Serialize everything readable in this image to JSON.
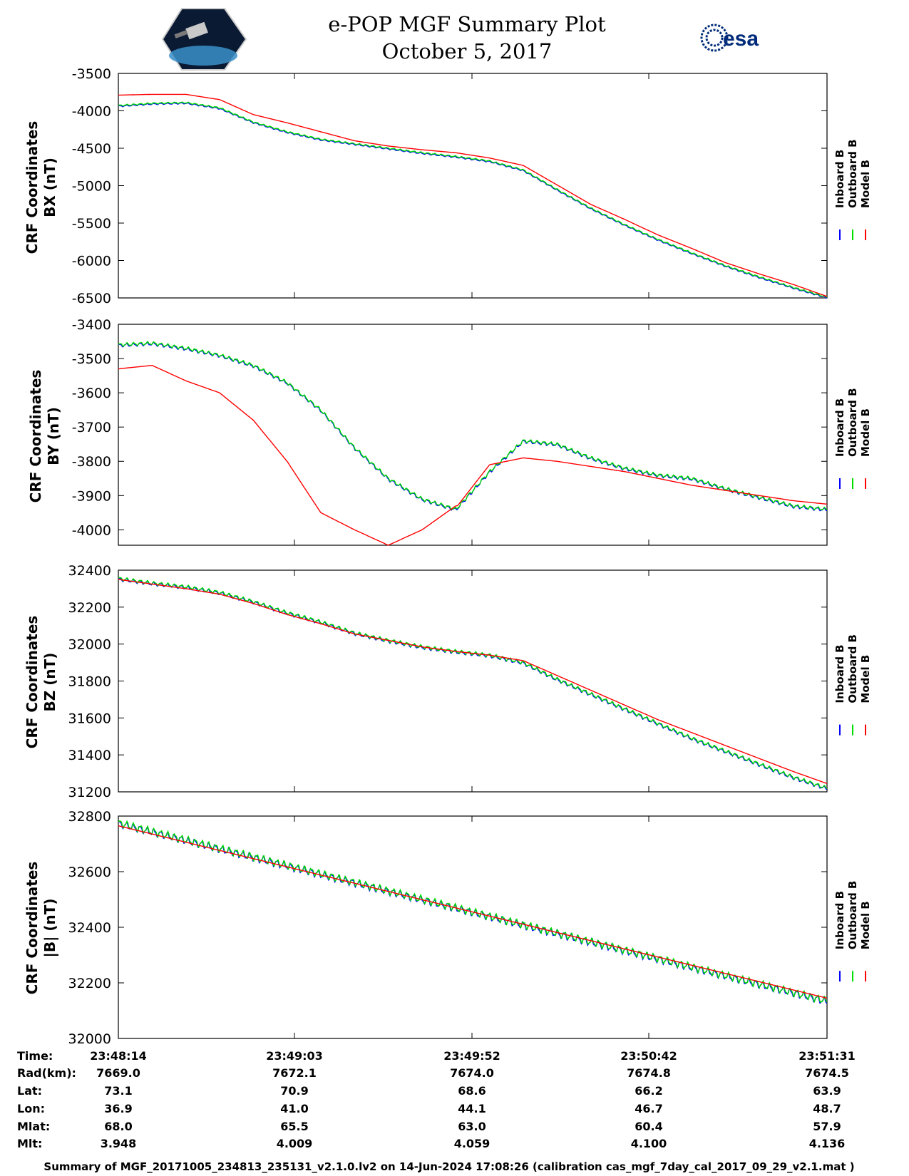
{
  "title": "e-POP MGF Summary Plot",
  "subtitle": "October 5, 2017",
  "logos": {
    "left": "cassiope-mission-patch",
    "right": "esa"
  },
  "logo_text": {
    "right": "esa"
  },
  "colors": {
    "inboard": "#0000ff",
    "outboard": "#00dd00",
    "model": "#ff0000"
  },
  "legend": [
    "Inboard B",
    "Outboard B",
    "Model B"
  ],
  "chart_data": [
    {
      "type": "line",
      "ylabel": [
        "CRF Coordinates",
        "BX (nT)"
      ],
      "ylim": [
        -6500,
        -3500
      ],
      "yticks": [
        -3500,
        -4000,
        -4500,
        -5000,
        -5500,
        -6000,
        -6500
      ],
      "x": [
        0,
        10,
        20,
        30,
        40,
        50,
        60,
        70,
        80,
        90,
        100,
        110,
        120,
        130,
        140,
        150,
        160,
        170,
        180,
        190,
        200,
        210
      ],
      "series": [
        {
          "name": "Outboard B",
          "wiggle": 8,
          "values": [
            -3930,
            -3900,
            -3890,
            -3960,
            -4150,
            -4280,
            -4380,
            -4440,
            -4500,
            -4560,
            -4610,
            -4670,
            -4790,
            -5050,
            -5300,
            -5520,
            -5720,
            -5900,
            -6070,
            -6220,
            -6360,
            -6490
          ]
        },
        {
          "name": "Model B",
          "wiggle": 0,
          "values": [
            -3790,
            -3780,
            -3780,
            -3850,
            -4050,
            -4160,
            -4280,
            -4400,
            -4470,
            -4520,
            -4560,
            -4630,
            -4730,
            -4990,
            -5250,
            -5450,
            -5660,
            -5840,
            -6030,
            -6180,
            -6320,
            -6480
          ]
        }
      ]
    },
    {
      "type": "line",
      "ylabel": [
        "CRF Coordinates",
        "BY (nT)"
      ],
      "ylim": [
        -4045,
        -3400
      ],
      "yticks": [
        -3400,
        -3500,
        -3600,
        -3700,
        -3800,
        -3900,
        -4000
      ],
      "x": [
        0,
        10,
        20,
        30,
        40,
        50,
        60,
        70,
        80,
        90,
        100,
        100.5,
        110,
        120,
        130,
        140,
        150,
        160,
        170,
        180,
        190,
        200,
        210
      ],
      "series": [
        {
          "name": "Outboard B",
          "wiggle": 4,
          "values": [
            -3460,
            -3455,
            -3470,
            -3490,
            -3520,
            -3570,
            -3650,
            -3760,
            -3850,
            -3910,
            -3940,
            -3935,
            -3830,
            -3740,
            -3750,
            -3790,
            -3820,
            -3840,
            -3850,
            -3880,
            -3905,
            -3930,
            -3940
          ]
        },
        {
          "name": "Model B",
          "wiggle": 0,
          "values": [
            -3530,
            -3520,
            -3565,
            -3600,
            -3680,
            -3800,
            -3950,
            -4000,
            -4045,
            -4000,
            -3930,
            -3930,
            -3810,
            -3790,
            -3800,
            -3815,
            -3830,
            -3850,
            -3870,
            -3885,
            -3900,
            -3915,
            -3925
          ]
        }
      ]
    },
    {
      "type": "line",
      "ylabel": [
        "CRF Coordinates",
        "BZ (nT)"
      ],
      "ylim": [
        31200,
        32400
      ],
      "yticks": [
        32400,
        32200,
        32000,
        31800,
        31600,
        31400,
        31200
      ],
      "x": [
        0,
        10,
        20,
        30,
        40,
        50,
        60,
        70,
        80,
        90,
        100,
        110,
        120,
        130,
        140,
        150,
        160,
        170,
        180,
        190,
        200,
        210
      ],
      "series": [
        {
          "name": "Outboard B",
          "wiggle": 8,
          "values": [
            32355,
            32330,
            32310,
            32280,
            32230,
            32170,
            32120,
            32060,
            32020,
            31985,
            31960,
            31940,
            31900,
            31810,
            31730,
            31650,
            31570,
            31490,
            31420,
            31350,
            31280,
            31220
          ]
        },
        {
          "name": "Model B",
          "wiggle": 0,
          "values": [
            32350,
            32325,
            32300,
            32270,
            32220,
            32160,
            32110,
            32055,
            32020,
            31985,
            31960,
            31940,
            31910,
            31830,
            31750,
            31670,
            31590,
            31520,
            31450,
            31380,
            31310,
            31245
          ]
        }
      ]
    },
    {
      "type": "line",
      "ylabel": [
        "CRF Coordinates",
        "|B| (nT)"
      ],
      "ylim": [
        32000,
        32800
      ],
      "yticks": [
        32800,
        32600,
        32400,
        32200,
        32000
      ],
      "x": [
        0,
        210
      ],
      "series": [
        {
          "name": "Outboard B",
          "wiggle": 11,
          "values": [
            32775,
            32135
          ]
        },
        {
          "name": "Model B",
          "wiggle": 0,
          "values": [
            32765,
            32145
          ]
        }
      ]
    }
  ],
  "orbit_table": {
    "row_labels": [
      "Time:",
      "Rad(km):",
      "Lat:",
      "Lon:",
      "Mlat:",
      "Mlt:"
    ],
    "columns": [
      [
        "23:48:14",
        "7669.0",
        "73.1",
        "36.9",
        "68.0",
        "3.948"
      ],
      [
        "23:49:03",
        "7672.1",
        "70.9",
        "41.0",
        "65.5",
        "4.009"
      ],
      [
        "23:49:52",
        "7674.0",
        "68.6",
        "44.1",
        "63.0",
        "4.059"
      ],
      [
        "23:50:42",
        "7674.8",
        "66.2",
        "46.7",
        "60.4",
        "4.100"
      ],
      [
        "23:51:31",
        "7674.5",
        "63.9",
        "48.7",
        "57.9",
        "4.136"
      ]
    ]
  },
  "footer": "Summary of MGF_20171005_234813_235131_v2.1.0.lv2 on 14-Jun-2024 17:08:26 (calibration cas_mgf_7day_cal_2017_09_29_v2.1.mat )"
}
